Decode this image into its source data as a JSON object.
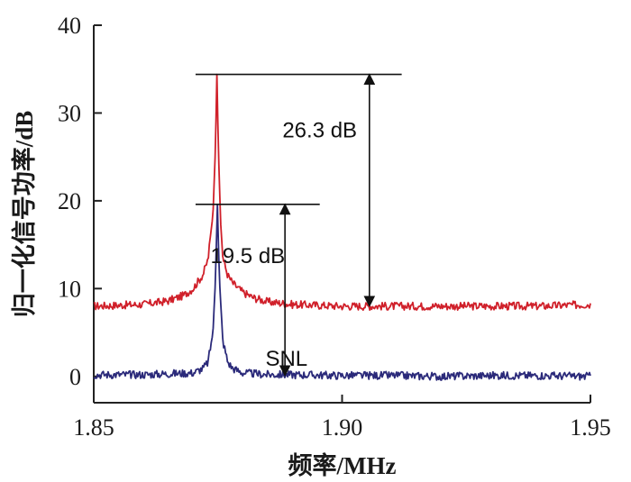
{
  "chart_data": {
    "type": "line",
    "xlabel": "频率/MHz",
    "ylabel": "归一化信号功率/dB",
    "xlim": [
      1.85,
      1.95
    ],
    "ylim": [
      -3,
      40
    ],
    "x_ticks": [
      "1.85",
      "1.90",
      "1.95"
    ],
    "x_tick_values": [
      1.85,
      1.9,
      1.95
    ],
    "y_ticks": [
      "0",
      "10",
      "20",
      "30",
      "40"
    ],
    "y_tick_values": [
      0,
      10,
      20,
      30,
      40
    ],
    "grid": false,
    "series": [
      {
        "color": "#d0202a",
        "baseline": 8.0,
        "peak_x": 1.8748,
        "peak_y": 34.4,
        "x": [
          1.85,
          1.855,
          1.86,
          1.865,
          1.868,
          1.87,
          1.872,
          1.873,
          1.874,
          1.8745,
          1.8748,
          1.8751,
          1.8755,
          1.876,
          1.877,
          1.878,
          1.88,
          1.882,
          1.885,
          1.89,
          1.9,
          1.91,
          1.92,
          1.93,
          1.94,
          1.95
        ],
        "y": [
          8.0,
          8.1,
          8.2,
          8.6,
          9.2,
          10.0,
          11.6,
          13.3,
          18.5,
          26.0,
          34.4,
          26.0,
          18.0,
          13.4,
          11.5,
          10.6,
          9.6,
          9.0,
          8.5,
          8.2,
          8.0,
          8.0,
          8.0,
          8.0,
          8.0,
          8.2
        ]
      },
      {
        "color": "#2b2a7a",
        "baseline": 0.2,
        "peak_x": 1.8749,
        "peak_y": 19.6,
        "x": [
          1.85,
          1.86,
          1.87,
          1.872,
          1.873,
          1.874,
          1.8745,
          1.8749,
          1.8753,
          1.876,
          1.877,
          1.878,
          1.88,
          1.885,
          1.89,
          1.9,
          1.91,
          1.92,
          1.93,
          1.94,
          1.95
        ],
        "y": [
          0.2,
          0.2,
          0.4,
          0.9,
          1.6,
          5.0,
          11.0,
          19.6,
          11.0,
          4.0,
          1.6,
          0.9,
          0.4,
          0.2,
          0.2,
          0.1,
          0.1,
          0.0,
          0.1,
          0.1,
          0.0
        ]
      }
    ],
    "annotations": [
      {
        "text": "26.3 dB",
        "hline_y": 34.4,
        "hline_x": [
          1.8705,
          1.912
        ],
        "arrow_x": 1.9055,
        "arrow_from": 34.4,
        "arrow_to": 8.0,
        "label_x": 1.8955,
        "label_y": 27.2
      },
      {
        "text": "19.5 dB",
        "hline_y": 19.6,
        "hline_x": [
          1.8705,
          1.8955
        ],
        "arrow_x": 1.8885,
        "arrow_from": 19.6,
        "arrow_to": 0.1,
        "label_x": 1.881,
        "label_y": 12.9
      },
      {
        "text": "SNL",
        "label_x": 1.8888,
        "label_y": 1.2
      }
    ]
  }
}
